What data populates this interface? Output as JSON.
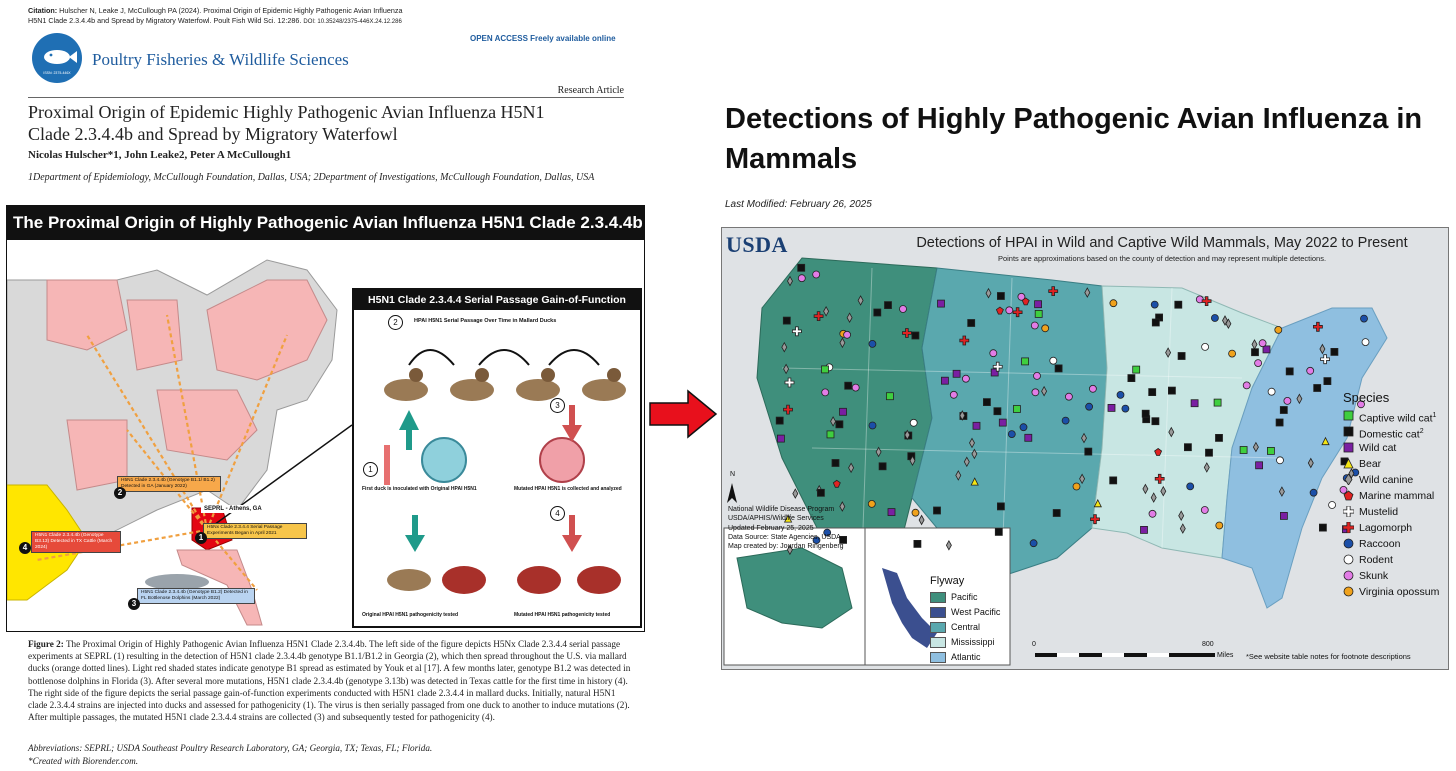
{
  "paper": {
    "citation_label": "Citation:",
    "citation_line1": " Hulscher N, Leake J, McCullough PA (2024). Proximal Origin of Epidemic Highly Pathogenic Avian Influenza",
    "citation_line2": "H5N1 Clade 2.3.4.4b and Spread by Migratory Waterfowl. Poult Fish Wild Sci. 12:286.",
    "citation_doi": "DOI: 10.35248/2375-446X.24.12.286",
    "logo_issn": "ISSN: 2375-446X",
    "journal_name": "Poultry Fisheries & Wildlife Sciences",
    "open_access": "OPEN ACCESS Freely available online",
    "article_type": "Research Article",
    "title_line1": "Proximal Origin of Epidemic Highly Pathogenic Avian Influenza H5N1",
    "title_line2": "Clade 2.3.4.4b and Spread by Migratory Waterfowl",
    "authors": "Nicolas Hulscher*1, John Leake2, Peter A McCullough1",
    "affiliations": "1Department of Epidemiology, McCullough Foundation, Dallas, USA; 2Department of Investigations, McCullough Foundation, Dallas, USA",
    "figure": {
      "header": "The Proximal Origin of Highly Pathogenic Avian Influenza H5N1 Clade 2.3.4.4b",
      "serial_header": "H5N1 Clade 2.3.4.4 Serial Passage Gain-of-Function",
      "serial_sub": "HPAI H5N1 Serial Passage Over Time in Mallard Ducks",
      "step1_text": "First duck is inoculated with Original HPAI H5N1",
      "step3_text": "Mutated HPAI H5N1 is collected and analyzed",
      "bottom_left_text": "Original HPAI H5N1 pathogenicity tested",
      "bottom_right_text": "Mutated HPAI H5N1 pathogenicity tested",
      "seprl_label": "SEPRL - Athens, GA",
      "box1": "H5Nx Clade 2.3.4.4 Serial Passage Experiments Began in April 2021",
      "box2": "H5N1 Clade 2.3.4.4b (Genotype B1.1/ B1.2) Detected in GA (January 2022)",
      "box3": "H5N1 Clade 2.3.4.4b (Genotype B1.2) Detected in FL Bottlenose Dolphins (March 2022)",
      "box4": "H5N1 Clade 2.3.4.4b (Genotype B3.13) Detected in TX Cattle (March 2024)",
      "n1": "1",
      "n2": "2",
      "n3": "3",
      "n4": "4"
    },
    "caption_label": "Figure 2:",
    "caption_text": " The Proximal Origin of Highly Pathogenic Avian Influenza H5N1 Clade 2.3.4.4b. The left side of the figure depicts H5Nx Clade 2.3.4.4 serial passage experiments at SEPRL (1) resulting in the detection of H5N1 clade 2.3.4.4b genotype B1.1/B1.2 in Georgia (2), which then spread throughout the U.S. via mallard ducks (orange dotted lines). Light red shaded states indicate genotype B1 spread as estimated by Youk et al [17]. A few months later, genotype B1.2 was detected in bottlenose dolphins in Florida (3). After several more mutations, H5N1 clade 2.3.4.4b (genotype 3.13b) was detected in Texas cattle for the first time in history (4). The right side of the figure depicts the serial passage gain-of-function experiments conducted with H5N1 clade 2.3.4.4 in mallard ducks. Initially, natural H5N1 clade 2.3.4.4 strains are injected into ducks and assessed for pathogenicity (1). The virus is then serially passaged from one duck to another to induce mutations (2). After multiple passages, the mutated H5N1 clade 2.3.4.4 strains are collected (3) and subsequently tested for pathogenicity (4).",
    "abbreviations": "Abbreviations: SEPRL; USDA Southeast Poultry Research Laboratory, GA; Georgia, TX; Texas, FL; Florida.",
    "biorender": "*Created with Biorender.com."
  },
  "article": {
    "title": "Detections of Highly Pathogenic Avian Influenza in Mammals",
    "last_modified": "Last Modified: February 26, 2025"
  },
  "map": {
    "usda": "USDA",
    "title": "Detections of HPAI in Wild and Captive Wild Mammals, May 2022 to Present",
    "subtitle": "Points are approximations based on the county of detection and may represent multiple detections.",
    "species_title": "Species",
    "species": [
      {
        "label": "Captive wild cat",
        "sup": "1",
        "color": "#3fcf3f",
        "shape": "square"
      },
      {
        "label": "Domestic cat",
        "sup": "2",
        "color": "#111111",
        "shape": "square"
      },
      {
        "label": "Wild cat",
        "sup": "",
        "color": "#7a1fa2",
        "shape": "square"
      },
      {
        "label": "Bear",
        "sup": "",
        "color": "#f5e614",
        "shape": "triangle"
      },
      {
        "label": "Wild canine",
        "sup": "",
        "color": "#9a9a9a",
        "shape": "diamond"
      },
      {
        "label": "Marine mammal",
        "sup": "",
        "color": "#e02222",
        "shape": "pentagon"
      },
      {
        "label": "Mustelid",
        "sup": "",
        "color": "#ffffff",
        "shape": "cross"
      },
      {
        "label": "Lagomorph",
        "sup": "",
        "color": "#e02222",
        "shape": "cross"
      },
      {
        "label": "Raccoon",
        "sup": "",
        "color": "#1b4fa8",
        "shape": "circle"
      },
      {
        "label": "Rodent",
        "sup": "",
        "color": "#ffffff",
        "shape": "circle"
      },
      {
        "label": "Skunk",
        "sup": "",
        "color": "#e27ce6",
        "shape": "circle"
      },
      {
        "label": "Virginia opossum",
        "sup": "",
        "color": "#f0a21c",
        "shape": "circle"
      }
    ],
    "flyway_title": "Flyway",
    "flyways": [
      {
        "label": "Pacific",
        "color": "#3f8f7c"
      },
      {
        "label": "West Pacific",
        "color": "#3b4f8f"
      },
      {
        "label": "Central",
        "color": "#5aa8ae"
      },
      {
        "label": "Mississippi",
        "color": "#c8e6e3"
      },
      {
        "label": "Atlantic",
        "color": "#8fbfe0"
      }
    ],
    "credits": [
      "National Wildlife Disease Program",
      "USDA/APHIS/Wildlife Services",
      "Updated February 25, 2025",
      "Data Source: State Agencies, USDA",
      "Map created by: Jourdan Ringenberg"
    ],
    "north": "N",
    "scale_0": "0",
    "scale_800": "800",
    "scale_unit": "Miles",
    "footnote": "*See website table notes for footnote descriptions"
  }
}
